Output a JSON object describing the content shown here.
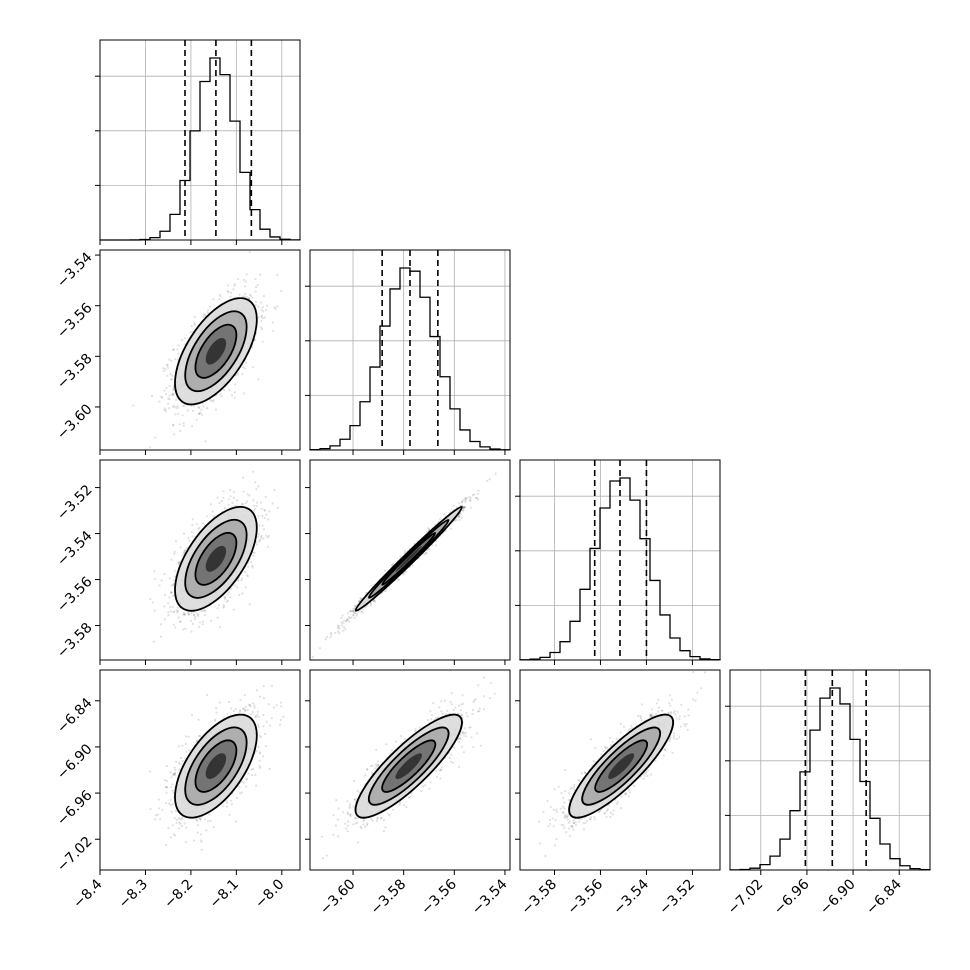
{
  "chart_data": {
    "type": "corner",
    "parameters": [
      {
        "mean": -8.145,
        "sd": 0.045,
        "range": [
          -8.4,
          -7.96
        ],
        "ticks": [
          -8.4,
          -8.3,
          -8.2,
          -8.1,
          -8.0
        ],
        "tick_labels": [
          "−8.4",
          "−8.3",
          "−8.2",
          "−8.1",
          "−8.0"
        ],
        "quantiles": [
          -8.213,
          -8.145,
          -8.067
        ]
      },
      {
        "mean": -3.578,
        "sd": 0.0105,
        "range": [
          -3.617,
          -3.538
        ],
        "ticks": [
          -3.6,
          -3.58,
          -3.56,
          -3.54
        ],
        "tick_labels": [
          "−3.60",
          "−3.58",
          "−3.56",
          "−3.54"
        ],
        "quantiles": [
          -3.5885,
          -3.5775,
          -3.5665
        ]
      },
      {
        "mean": -3.551,
        "sd": 0.0113,
        "range": [
          -3.595,
          -3.508
        ],
        "ticks": [
          -3.58,
          -3.56,
          -3.54,
          -3.52
        ],
        "tick_labels": [
          "−3.58",
          "−3.56",
          "−3.54",
          "−3.52"
        ],
        "quantiles": [
          -3.5625,
          -3.5515,
          -3.54
        ]
      },
      {
        "mean": -6.925,
        "sd": 0.0335,
        "range": [
          -7.06,
          -6.8
        ],
        "ticks": [
          -7.02,
          -6.96,
          -6.9,
          -6.84
        ],
        "tick_labels": [
          "−7.02",
          "−6.96",
          "−6.90",
          "−6.84"
        ],
        "quantiles": [
          -6.962,
          -6.927,
          -6.883
        ]
      }
    ],
    "correlations": {
      "1_0": 0.6,
      "2_0": 0.6,
      "3_0": 0.6,
      "2_1": 0.99,
      "3_1": 0.85,
      "3_2": 0.85
    },
    "contour_levels_sigma": [
      0.5,
      1.0,
      1.5,
      2.0
    ],
    "grid": true,
    "histogram_bins": 20
  }
}
